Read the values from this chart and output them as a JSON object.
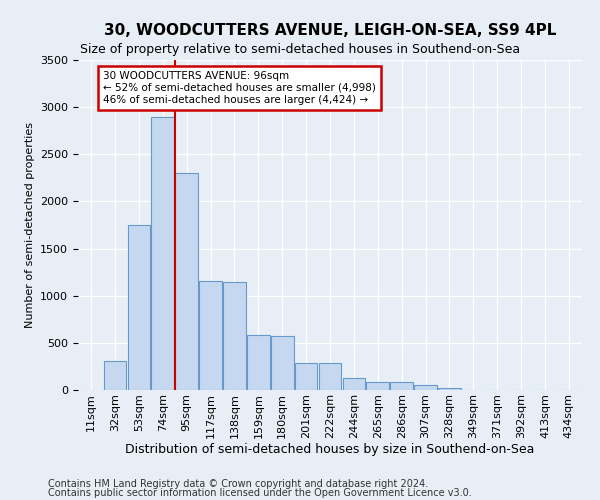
{
  "title": "30, WOODCUTTERS AVENUE, LEIGH-ON-SEA, SS9 4PL",
  "subtitle": "Size of property relative to semi-detached houses in Southend-on-Sea",
  "xlabel": "Distribution of semi-detached houses by size in Southend-on-Sea",
  "ylabel": "Number of semi-detached properties",
  "categories": [
    "11sqm",
    "32sqm",
    "53sqm",
    "74sqm",
    "95sqm",
    "117sqm",
    "138sqm",
    "159sqm",
    "180sqm",
    "201sqm",
    "222sqm",
    "244sqm",
    "265sqm",
    "286sqm",
    "307sqm",
    "328sqm",
    "349sqm",
    "371sqm",
    "392sqm",
    "413sqm",
    "434sqm"
  ],
  "values": [
    5,
    310,
    1750,
    2900,
    2300,
    1160,
    1150,
    580,
    575,
    290,
    285,
    130,
    85,
    80,
    55,
    18,
    5,
    3,
    2,
    1,
    1
  ],
  "bar_fill_color": "#c5d8ef",
  "bar_edge_color": "#6699cc",
  "marker_line_color": "#cc0000",
  "marker_index": 3.5,
  "annotation_text": "30 WOODCUTTERS AVENUE: 96sqm\n← 52% of semi-detached houses are smaller (4,998)\n46% of semi-detached houses are larger (4,424) →",
  "annotation_box_color": "#ffffff",
  "annotation_box_edge": "#cc0000",
  "background_color": "#e8eef5",
  "plot_bg_color": "#e8eef5",
  "footer1": "Contains HM Land Registry data © Crown copyright and database right 2024.",
  "footer2": "Contains public sector information licensed under the Open Government Licence v3.0.",
  "ylim": [
    0,
    3500
  ],
  "ytick_interval": 500,
  "title_fontsize": 11,
  "subtitle_fontsize": 9,
  "ylabel_fontsize": 8,
  "xlabel_fontsize": 9,
  "tick_fontsize": 8,
  "footer_fontsize": 7
}
